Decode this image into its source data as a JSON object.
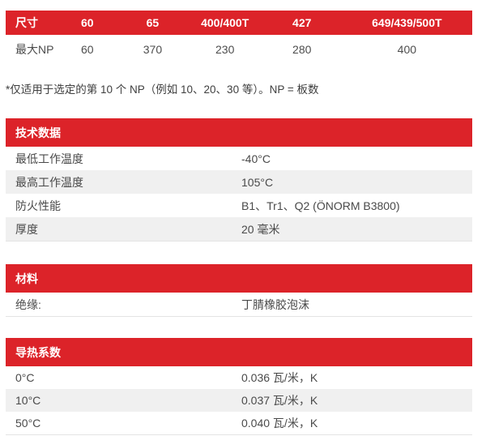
{
  "colors": {
    "accent_red": "#dc2329",
    "alt_row_gray": "#f0f0f0",
    "header_text": "#ffffff",
    "body_text": "#4a4a4a"
  },
  "size_table": {
    "headers": [
      "尺寸",
      "60",
      "65",
      "400/400T",
      "427",
      "649/439/500T"
    ],
    "row": {
      "label": "最大NP",
      "values": [
        "60",
        "370",
        "230",
        "280",
        "400"
      ]
    }
  },
  "note": "*仅适用于选定的第 10 个 NP（例如 10、20、30 等）。NP = 板数",
  "sections": {
    "technical": {
      "title": "技术数据",
      "rows": [
        {
          "label": "最低工作温度",
          "value": "-40°C"
        },
        {
          "label": "最高工作温度",
          "value": "105°C"
        },
        {
          "label": "防火性能",
          "value": "B1、Tr1、Q2 (ÖNORM B3800)"
        },
        {
          "label": "厚度",
          "value": "20 毫米"
        }
      ]
    },
    "material": {
      "title": "材料",
      "rows": [
        {
          "label": "绝缘:",
          "value": "丁腈橡胶泡沫"
        }
      ]
    },
    "conductivity": {
      "title": "导热系数",
      "rows": [
        {
          "label": "0°C",
          "value": "0.036 瓦/米，K"
        },
        {
          "label": "10°C",
          "value": "0.037 瓦/米，K"
        },
        {
          "label": "50°C",
          "value": "0.040 瓦/米，K"
        }
      ]
    }
  }
}
